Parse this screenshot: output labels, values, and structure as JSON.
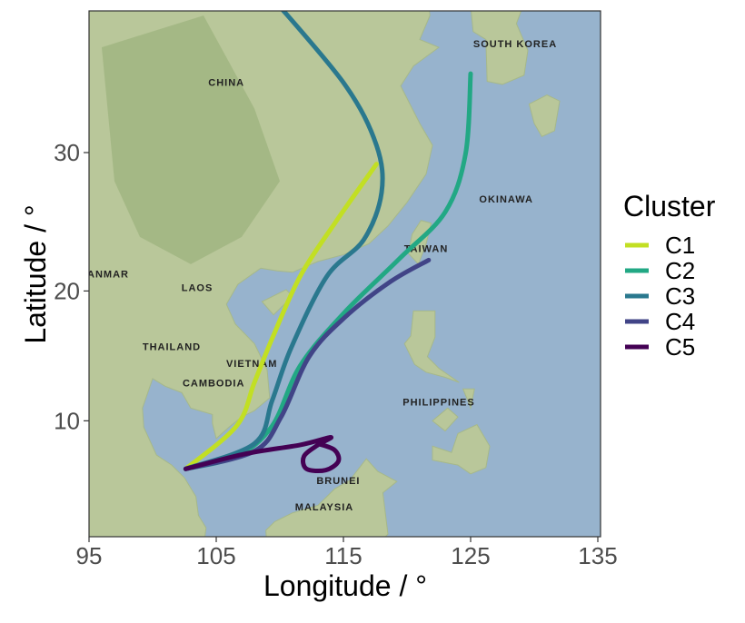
{
  "chart_data": {
    "type": "line",
    "title": "",
    "xlabel": "Longitude / °",
    "ylabel": "Latitude / °",
    "xlim": [
      95,
      135.2
    ],
    "ylim": [
      0.8,
      40.2
    ],
    "projection": "mercator",
    "background": "satellite map",
    "x_ticks": [
      95,
      105,
      115,
      125,
      135
    ],
    "y_ticks": [
      10,
      20,
      30
    ],
    "grid": false,
    "legend": {
      "title": "Cluster",
      "placement": "right"
    },
    "series": [
      {
        "name": "C1",
        "color": "#c2df23",
        "points": [
          [
            102.6,
            6.2
          ],
          [
            106.6,
            9.6
          ],
          [
            108.0,
            13.0
          ],
          [
            109.4,
            16.4
          ],
          [
            111.6,
            21.1
          ],
          [
            114.4,
            25.1
          ],
          [
            117.6,
            29.2
          ]
        ]
      },
      {
        "name": "C2",
        "color": "#22a884",
        "points": [
          [
            102.6,
            6.2
          ],
          [
            106.6,
            7.2
          ],
          [
            109.4,
            9.6
          ],
          [
            111.6,
            14.3
          ],
          [
            115.1,
            18.4
          ],
          [
            119.4,
            22.4
          ],
          [
            123.0,
            25.8
          ],
          [
            124.6,
            29.9
          ],
          [
            125.0,
            35.3
          ]
        ]
      },
      {
        "name": "C3",
        "color": "#2a788e",
        "points": [
          [
            102.6,
            6.2
          ],
          [
            108.0,
            8.2
          ],
          [
            109.4,
            11.6
          ],
          [
            110.9,
            15.7
          ],
          [
            113.7,
            21.1
          ],
          [
            116.6,
            23.8
          ],
          [
            118.0,
            27.2
          ],
          [
            117.6,
            30.5
          ],
          [
            115.1,
            34.6
          ],
          [
            109.4,
            40.1
          ]
        ]
      },
      {
        "name": "C4",
        "color": "#414487",
        "points": [
          [
            102.6,
            6.2
          ],
          [
            108.0,
            7.6
          ],
          [
            110.1,
            10.3
          ],
          [
            112.3,
            15.0
          ],
          [
            115.1,
            18.0
          ],
          [
            118.7,
            20.7
          ],
          [
            121.7,
            22.3
          ]
        ]
      },
      {
        "name": "C5",
        "color": "#440154",
        "points": [
          [
            102.6,
            6.2
          ],
          [
            107.3,
            7.4
          ],
          [
            111.6,
            8.1
          ],
          [
            114.0,
            8.7
          ],
          [
            113.0,
            8.1
          ],
          [
            111.9,
            7.2
          ],
          [
            112.1,
            6.2
          ],
          [
            113.6,
            6.1
          ],
          [
            114.6,
            6.8
          ],
          [
            114.3,
            7.7
          ],
          [
            113.0,
            8.2
          ]
        ]
      }
    ],
    "map_labels": [
      {
        "text": "CHINA",
        "lon": 105.8,
        "lat": 34.5
      },
      {
        "text": "SOUTH KOREA",
        "lon": 128.5,
        "lat": 37.0
      },
      {
        "text": "TAIWAN",
        "lon": 121.5,
        "lat": 22.9
      },
      {
        "text": "LAOS",
        "lon": 103.5,
        "lat": 20.0
      },
      {
        "text": "THAILAND",
        "lon": 101.5,
        "lat": 15.5
      },
      {
        "text": "CAMBODIA",
        "lon": 104.8,
        "lat": 12.7
      },
      {
        "text": "VIETNAM",
        "lon": 107.8,
        "lat": 14.2
      },
      {
        "text": "PHILIPPINES",
        "lon": 122.5,
        "lat": 11.2
      },
      {
        "text": "BRUNEI",
        "lon": 114.6,
        "lat": 5.0
      },
      {
        "text": "MALAYSIA",
        "lon": 113.5,
        "lat": 2.9
      },
      {
        "text": "ANMAR",
        "lon": 96.5,
        "lat": 21.0
      },
      {
        "text": "OKINAWA",
        "lon": 127.8,
        "lat": 26.5
      }
    ]
  }
}
